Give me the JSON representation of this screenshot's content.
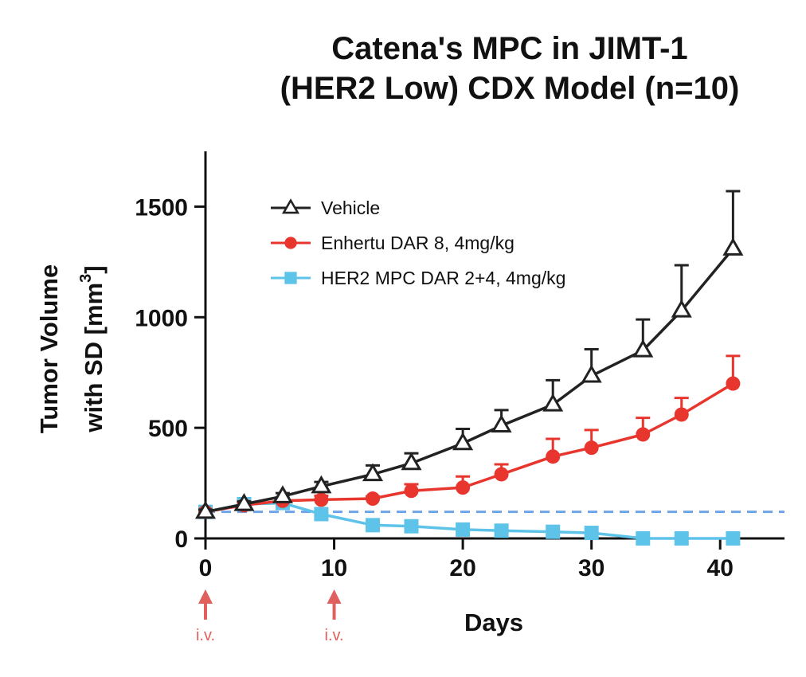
{
  "chart_data": {
    "type": "line",
    "title_lines": [
      "Catena's MPC in JIMT-1",
      "(HER2 Low) CDX Model (n=10)"
    ],
    "xlabel": "Days",
    "ylabel_lines": [
      "Tumor Volume",
      "with SD [mm",
      "3",
      "]"
    ],
    "xlim": [
      0,
      45
    ],
    "ylim": [
      0,
      1750
    ],
    "x_ticks": [
      0,
      10,
      20,
      30,
      40
    ],
    "y_ticks": [
      0,
      500,
      1000,
      1500
    ],
    "grid": false,
    "legend_position": "top-left",
    "baseline": {
      "value": 120,
      "color": "#6fa3ea",
      "style": "dashed"
    },
    "annotations": [
      {
        "text": "i.v.",
        "x": 0,
        "marker": "arrow-up",
        "color": "#e0605e"
      },
      {
        "text": "i.v.",
        "x": 10,
        "marker": "arrow-up",
        "color": "#e0605e"
      }
    ],
    "series": [
      {
        "name": "Vehicle",
        "color": "#222222",
        "marker": "triangle-open",
        "x": [
          0,
          3,
          6,
          9,
          13,
          16,
          20,
          23,
          27,
          30,
          34,
          37,
          41
        ],
        "y": [
          120,
          155,
          190,
          235,
          290,
          340,
          430,
          510,
          605,
          735,
          850,
          1030,
          1310
        ],
        "err": [
          10,
          12,
          15,
          20,
          40,
          45,
          65,
          70,
          110,
          120,
          140,
          205,
          260
        ]
      },
      {
        "name": "Enhertu DAR 8, 4mg/kg",
        "color": "#e8362e",
        "marker": "circle",
        "x": [
          0,
          3,
          6,
          9,
          13,
          16,
          20,
          23,
          27,
          30,
          34,
          37,
          41
        ],
        "y": [
          120,
          150,
          170,
          175,
          180,
          215,
          230,
          290,
          370,
          410,
          470,
          560,
          700
        ],
        "err": [
          8,
          10,
          12,
          18,
          10,
          30,
          50,
          45,
          80,
          80,
          75,
          75,
          125
        ]
      },
      {
        "name": "HER2 MPC DAR 2+4, 4mg/kg",
        "color": "#5ec3e8",
        "marker": "square",
        "x": [
          0,
          3,
          6,
          9,
          13,
          16,
          20,
          23,
          27,
          30,
          34,
          37,
          41
        ],
        "y": [
          120,
          155,
          160,
          110,
          60,
          55,
          40,
          35,
          30,
          25,
          0,
          0,
          0
        ],
        "err": [
          0,
          0,
          0,
          0,
          0,
          0,
          0,
          0,
          0,
          0,
          0,
          0,
          0
        ]
      }
    ]
  }
}
